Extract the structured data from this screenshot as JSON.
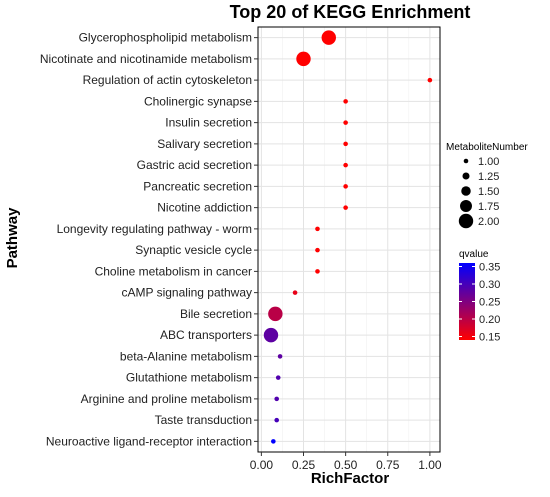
{
  "chart_data": {
    "type": "scatter",
    "title": "Top 20 of KEGG Enrichment",
    "xlabel": "RichFactor",
    "ylabel": "Pathway",
    "xlim": [
      -0.02,
      1.06
    ],
    "xticks": [
      "0.00",
      "0.25",
      "0.50",
      "0.75",
      "1.00"
    ],
    "xtick_values": [
      0,
      0.25,
      0.5,
      0.75,
      1.0
    ],
    "grid": true,
    "pathways": [
      {
        "name": "Glycerophospholipid metabolism",
        "richfactor": 0.4,
        "metabolites": 2,
        "qvalue": 0.14
      },
      {
        "name": "Nicotinate and nicotinamide metabolism",
        "richfactor": 0.25,
        "metabolites": 2,
        "qvalue": 0.14
      },
      {
        "name": "Regulation of actin cytoskeleton",
        "richfactor": 1.0,
        "metabolites": 1,
        "qvalue": 0.14
      },
      {
        "name": "Cholinergic synapse",
        "richfactor": 0.5,
        "metabolites": 1,
        "qvalue": 0.14
      },
      {
        "name": "Insulin secretion",
        "richfactor": 0.5,
        "metabolites": 1,
        "qvalue": 0.14
      },
      {
        "name": "Salivary secretion",
        "richfactor": 0.5,
        "metabolites": 1,
        "qvalue": 0.14
      },
      {
        "name": "Gastric acid secretion",
        "richfactor": 0.5,
        "metabolites": 1,
        "qvalue": 0.14
      },
      {
        "name": "Pancreatic secretion",
        "richfactor": 0.5,
        "metabolites": 1,
        "qvalue": 0.14
      },
      {
        "name": "Nicotine addiction",
        "richfactor": 0.5,
        "metabolites": 1,
        "qvalue": 0.14
      },
      {
        "name": "Longevity regulating pathway - worm",
        "richfactor": 0.333,
        "metabolites": 1,
        "qvalue": 0.14
      },
      {
        "name": "Synaptic vesicle cycle",
        "richfactor": 0.333,
        "metabolites": 1,
        "qvalue": 0.14
      },
      {
        "name": "Choline metabolism in cancer",
        "richfactor": 0.333,
        "metabolites": 1,
        "qvalue": 0.14
      },
      {
        "name": "cAMP signaling pathway",
        "richfactor": 0.2,
        "metabolites": 1,
        "qvalue": 0.16
      },
      {
        "name": "Bile secretion",
        "richfactor": 0.083,
        "metabolites": 2,
        "qvalue": 0.2
      },
      {
        "name": "ABC transporters",
        "richfactor": 0.057,
        "metabolites": 2,
        "qvalue": 0.28
      },
      {
        "name": "beta-Alanine metabolism",
        "richfactor": 0.111,
        "metabolites": 1,
        "qvalue": 0.28
      },
      {
        "name": "Glutathione metabolism",
        "richfactor": 0.1,
        "metabolites": 1,
        "qvalue": 0.29
      },
      {
        "name": "Arginine and proline metabolism",
        "richfactor": 0.091,
        "metabolites": 1,
        "qvalue": 0.29
      },
      {
        "name": "Taste transduction",
        "richfactor": 0.091,
        "metabolites": 1,
        "qvalue": 0.3
      },
      {
        "name": "Neuroactive ligand-receptor interaction",
        "richfactor": 0.071,
        "metabolites": 1,
        "qvalue": 0.36
      }
    ],
    "legend_size": {
      "title": "MetaboliteNumber",
      "values": [
        1.0,
        1.25,
        1.5,
        1.75,
        2.0
      ],
      "labels": [
        "1.00",
        "1.25",
        "1.50",
        "1.75",
        "2.00"
      ],
      "placement": "right"
    },
    "legend_color": {
      "title": "qvalue",
      "labels": [
        "0.35",
        "0.30",
        "0.25",
        "0.20",
        "0.15"
      ],
      "values": [
        0.35,
        0.3,
        0.25,
        0.2,
        0.15
      ],
      "range": [
        0.14,
        0.36
      ],
      "low_color": "#ff0000",
      "high_color": "#0000ff",
      "placement": "right"
    }
  }
}
